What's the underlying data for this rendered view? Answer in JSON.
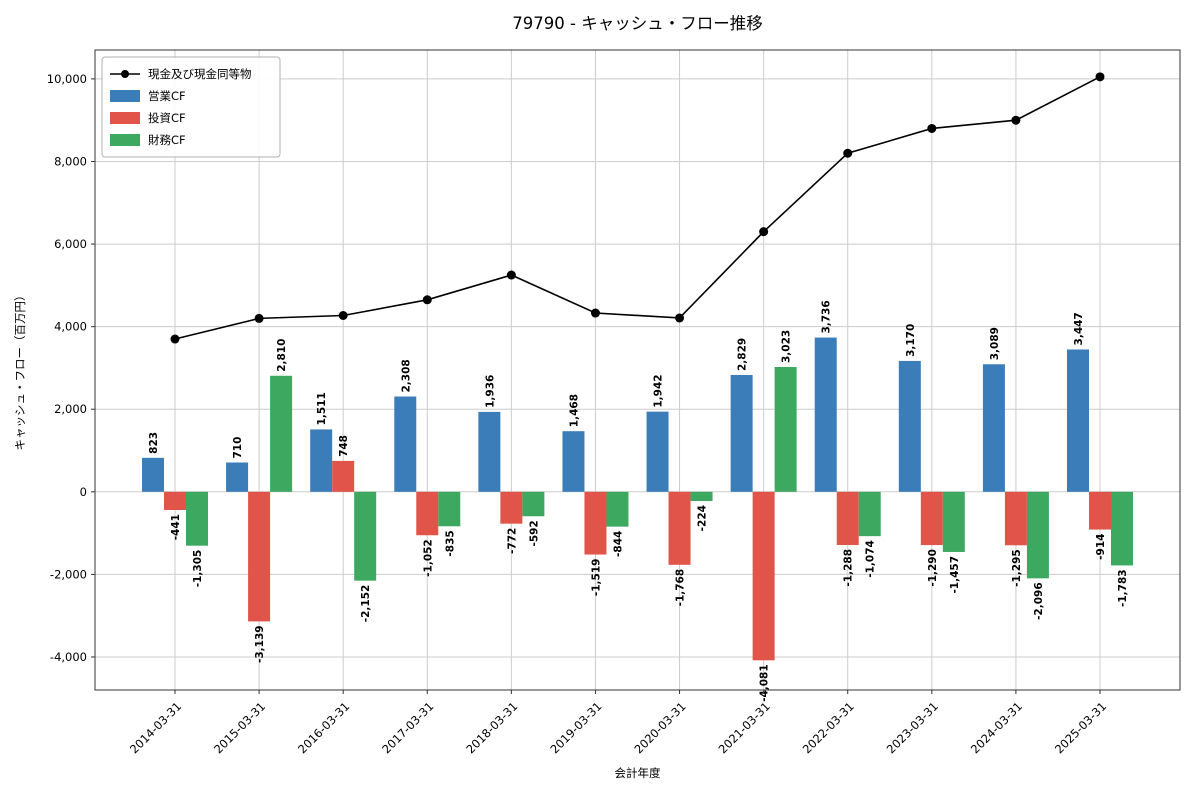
{
  "chart_data": {
    "type": "bar",
    "title": "79790 - キャッシュ・フロー推移",
    "xlabel": "会計年度",
    "ylabel": "キャッシュ・フロー（百万円）",
    "grid": true,
    "legend_position": "upper left",
    "ylim": [
      -4800,
      10700
    ],
    "yticks": [
      -4000,
      -2000,
      0,
      2000,
      4000,
      6000,
      8000,
      10000
    ],
    "categories": [
      "2014-03-31",
      "2015-03-31",
      "2016-03-31",
      "2017-03-31",
      "2018-03-31",
      "2019-03-31",
      "2020-03-31",
      "2021-03-31",
      "2022-03-31",
      "2023-03-31",
      "2024-03-31",
      "2025-03-31"
    ],
    "series": [
      {
        "name": "営業CF",
        "type": "bar",
        "color": "#3b7db8",
        "values": [
          823,
          710,
          1511,
          2308,
          1936,
          1468,
          1942,
          2829,
          3736,
          3170,
          3089,
          3447
        ]
      },
      {
        "name": "投資CF",
        "type": "bar",
        "color": "#e15449",
        "values": [
          -441,
          -3139,
          748,
          -1052,
          -772,
          -1519,
          -1768,
          -4081,
          -1288,
          -1290,
          -1295,
          -914
        ]
      },
      {
        "name": "財務CF",
        "type": "bar",
        "color": "#3da85f",
        "values": [
          -1305,
          2810,
          -2152,
          -835,
          -592,
          -844,
          -224,
          3023,
          -1074,
          -1457,
          -2096,
          -1783
        ]
      },
      {
        "name": "現金及び現金同等物",
        "type": "line",
        "color": "#000000",
        "values": [
          3700,
          4200,
          4270,
          4650,
          5250,
          4330,
          4210,
          6300,
          8200,
          8800,
          9000,
          10050
        ]
      }
    ]
  }
}
